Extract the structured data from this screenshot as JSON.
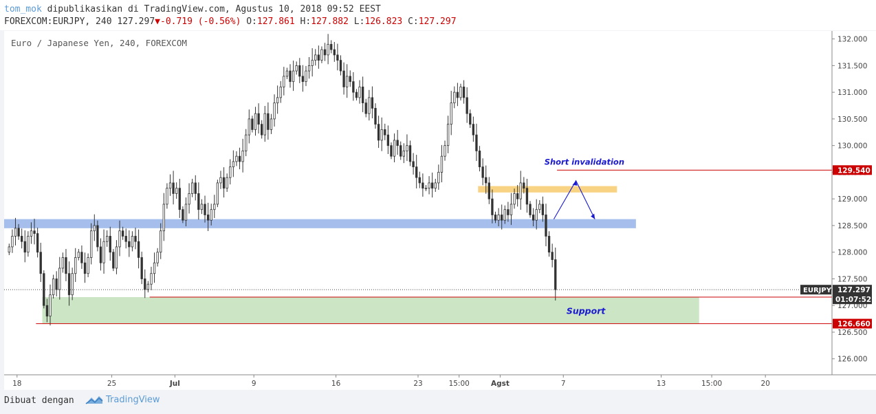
{
  "header": {
    "author": "tom_mok",
    "published": "dipublikasikan di TradingView.com, Agustus 10, 2018 09:52 EEST",
    "symbol": "FOREXCOM:EURJPY, 240",
    "last": "127.297",
    "change": "-0.719 (-0.56%)",
    "o_label": "O:",
    "o_value": "127.861",
    "h_label": "H:",
    "h_value": "127.882",
    "l_label": "L:",
    "l_value": "126.823",
    "c_label": "C:",
    "c_value": "127.297"
  },
  "footer": {
    "made_with": "Dibuat dengan",
    "brand": "TradingView"
  },
  "chart_data": {
    "type": "candlestick",
    "title": "Euro / Japanese Yen, 240, FOREXCOM",
    "symbol_tag": "EURJPY",
    "ylim": [
      125.7,
      132.15
    ],
    "y_ticks": [
      126.0,
      126.5,
      127.0,
      127.5,
      128.0,
      128.5,
      129.0,
      129.5,
      130.0,
      130.5,
      131.0,
      131.5,
      132.0
    ],
    "y_tick_labels": [
      "126.000",
      "126.500",
      "127.000",
      "127.500",
      "128.000",
      "128.500",
      "129.000",
      "129.500",
      "130.000",
      "130.500",
      "131.000",
      "131.500",
      "132.000"
    ],
    "x_ticks": [
      {
        "label": "18",
        "bar": 3
      },
      {
        "label": "25",
        "bar": 33
      },
      {
        "label": "Jul",
        "bar": 53
      },
      {
        "label": "9",
        "bar": 78
      },
      {
        "label": "16",
        "bar": 104
      },
      {
        "label": "23",
        "bar": 130
      },
      {
        "label": "15:00",
        "bar": 143
      },
      {
        "label": "Agst",
        "bar": 156
      },
      {
        "label": "7",
        "bar": 176
      },
      {
        "label": "13",
        "bar": 207
      },
      {
        "label": "15:00",
        "bar": 223
      },
      {
        "label": "20",
        "bar": 240
      }
    ],
    "bars_total": 260,
    "closes": [
      128.1,
      128.3,
      128.45,
      128.3,
      128.2,
      128.0,
      128.3,
      128.4,
      128.35,
      128.0,
      127.6,
      127.0,
      126.8,
      127.2,
      127.5,
      127.3,
      127.7,
      127.9,
      127.6,
      127.2,
      127.6,
      127.9,
      128.0,
      127.8,
      127.6,
      127.9,
      128.4,
      128.5,
      128.1,
      127.8,
      128.2,
      128.3,
      128.0,
      127.7,
      128.1,
      128.4,
      128.3,
      128.2,
      128.1,
      128.3,
      128.2,
      127.9,
      127.5,
      127.3,
      127.4,
      127.6,
      127.8,
      128.0,
      128.4,
      128.9,
      129.2,
      129.3,
      129.1,
      129.2,
      128.8,
      128.6,
      128.9,
      129.1,
      129.3,
      129.1,
      128.8,
      128.9,
      128.7,
      128.6,
      128.8,
      128.9,
      129.3,
      129.4,
      129.2,
      129.4,
      129.6,
      129.7,
      129.8,
      129.7,
      129.9,
      130.2,
      130.5,
      130.3,
      130.6,
      130.4,
      130.2,
      130.6,
      130.3,
      130.5,
      130.8,
      130.9,
      131.1,
      131.3,
      131.4,
      131.2,
      131.4,
      131.5,
      131.3,
      131.2,
      131.4,
      131.5,
      131.6,
      131.7,
      131.6,
      131.8,
      131.7,
      131.9,
      131.8,
      131.7,
      131.6,
      131.4,
      131.1,
      131.3,
      131.2,
      131.0,
      130.9,
      131.1,
      130.8,
      130.6,
      130.9,
      130.7,
      130.4,
      130.1,
      130.3,
      130.2,
      130.0,
      129.8,
      130.1,
      130.0,
      129.8,
      129.9,
      130.0,
      129.7,
      129.6,
      129.4,
      129.3,
      129.2,
      129.2,
      129.3,
      129.2,
      129.3,
      129.5,
      129.8,
      130.0,
      130.4,
      130.8,
      131.0,
      130.9,
      131.1,
      130.9,
      130.6,
      130.4,
      130.2,
      129.9,
      129.6,
      129.4,
      129.3,
      129.0,
      128.7,
      128.6,
      128.7,
      128.6,
      128.8,
      128.7,
      128.9,
      129.1,
      129.0,
      129.3,
      129.2,
      128.9,
      128.7,
      128.6,
      128.8,
      128.9,
      128.7,
      128.3,
      128.0,
      127.86,
      127.297
    ],
    "support_zone": {
      "label": "Support",
      "from": 126.66,
      "to": 127.157
    },
    "resistance_zone": {
      "from": 128.45,
      "to": 128.62
    },
    "short_zone": {
      "from": 129.12,
      "to": 129.24
    },
    "short_invalidation": {
      "label": "Short invalidation",
      "level": 129.54
    },
    "levels": [
      {
        "value": 129.54,
        "label": "129.540",
        "color": "#cc0000"
      },
      {
        "value": 127.157,
        "label": "127.157",
        "color": "#cc0000"
      },
      {
        "value": 126.66,
        "label": "126.660",
        "color": "#cc0000"
      }
    ],
    "last_price": {
      "value": 127.297,
      "label": "127.297",
      "countdown": "01:07:52"
    }
  }
}
